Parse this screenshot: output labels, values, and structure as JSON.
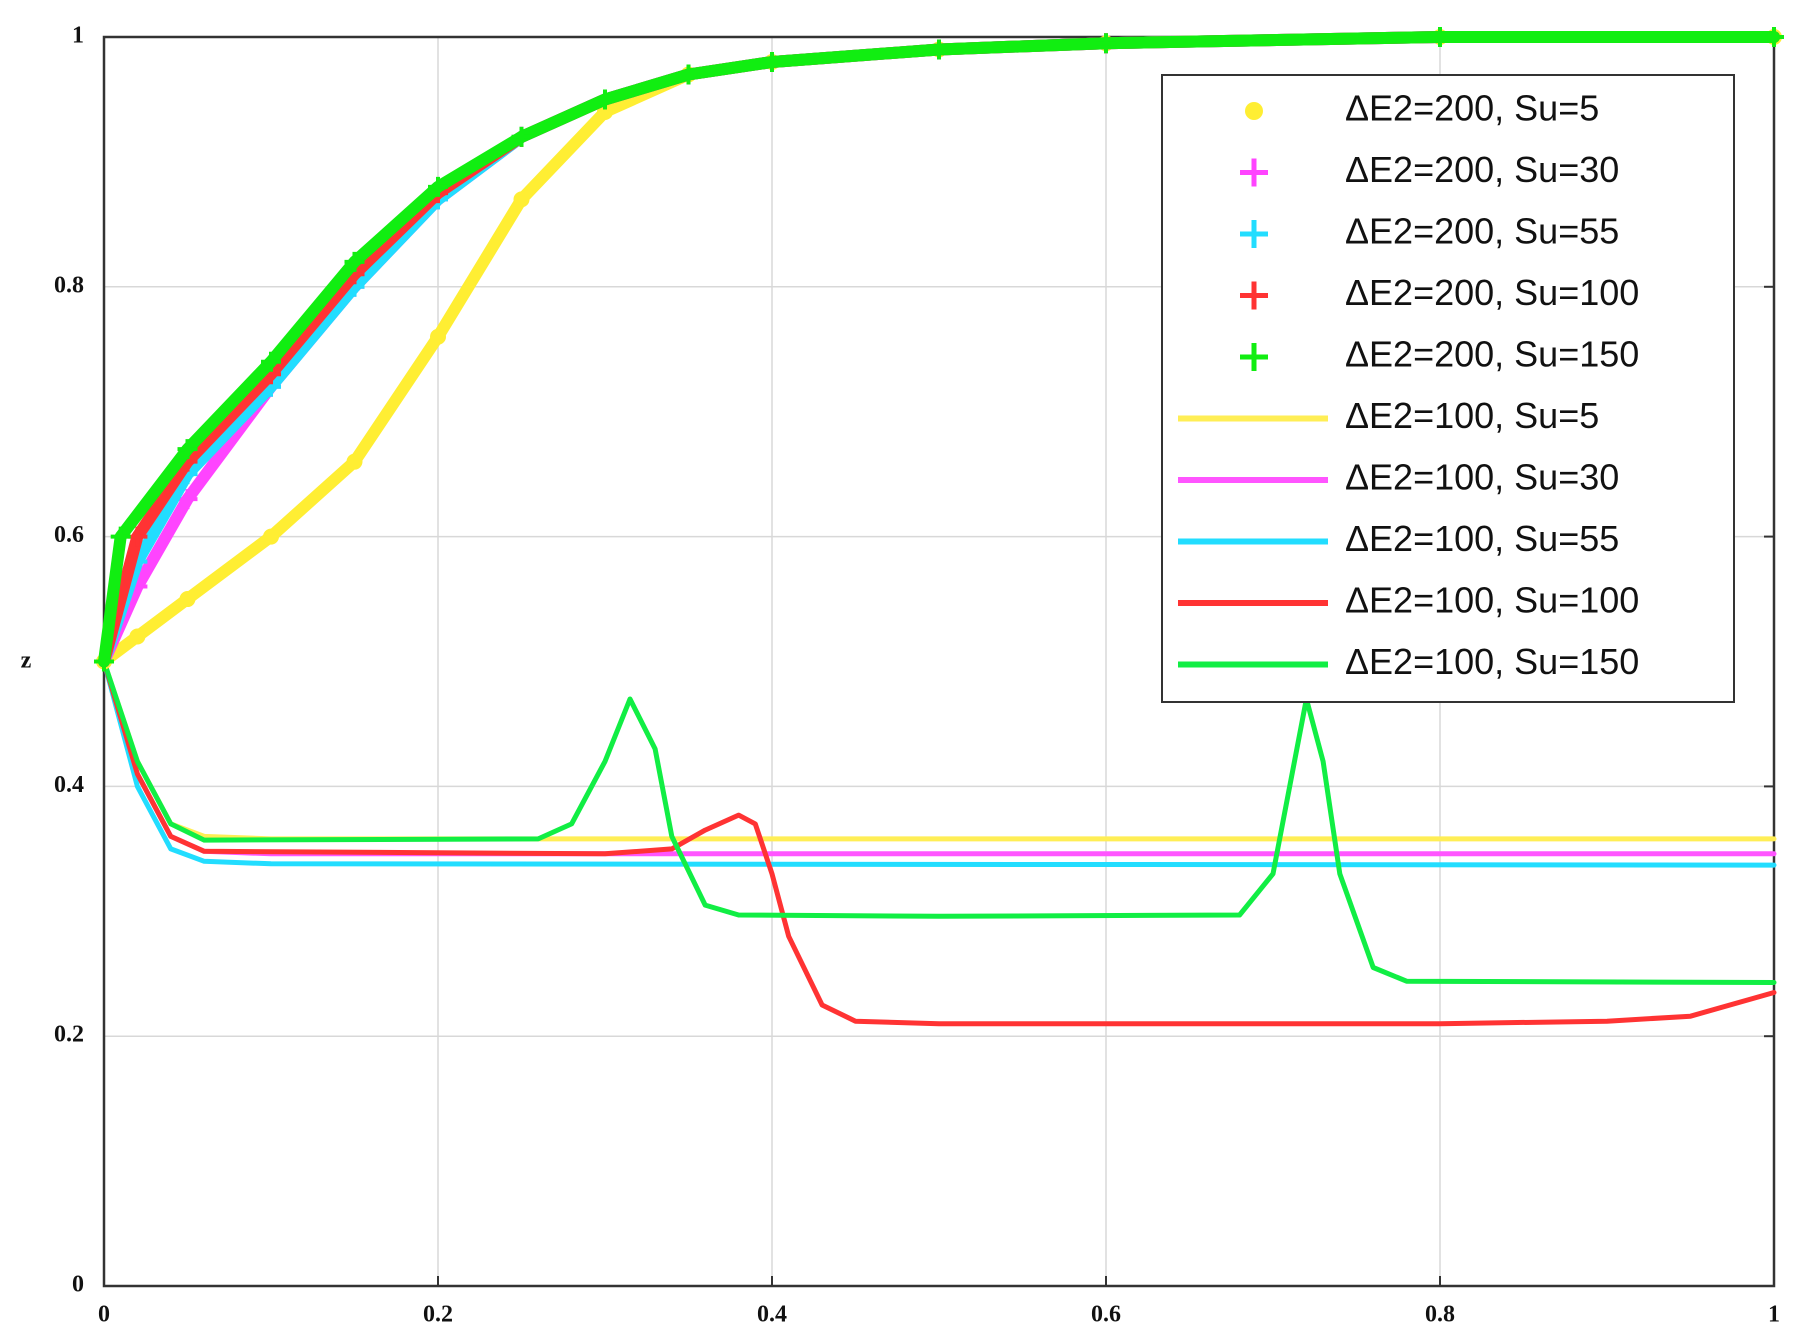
{
  "chart_data": {
    "type": "line",
    "ylabel": "z",
    "xlim": [
      0,
      1
    ],
    "ylim": [
      0,
      1
    ],
    "xticks": [
      0,
      0.2,
      0.4,
      0.6,
      0.8,
      1
    ],
    "yticks": [
      0,
      0.2,
      0.4,
      0.6,
      0.8,
      1
    ],
    "grid": true,
    "legend": "upper right",
    "series": [
      {
        "name": "ΔE2=200, Su=5",
        "color": "#ffee33",
        "marker": "o",
        "x": [
          0,
          0.02,
          0.05,
          0.1,
          0.15,
          0.2,
          0.25,
          0.3,
          0.35,
          0.4,
          0.5,
          0.6,
          0.8,
          1
        ],
        "values": [
          0.5,
          0.52,
          0.55,
          0.6,
          0.66,
          0.76,
          0.87,
          0.94,
          0.97,
          0.98,
          0.99,
          0.995,
          1,
          1
        ]
      },
      {
        "name": "ΔE2=200, Su=30",
        "color": "#ff44ff",
        "marker": "+",
        "x": [
          0,
          0.02,
          0.05,
          0.1,
          0.15,
          0.2,
          0.25,
          0.3,
          0.35,
          0.4,
          0.5,
          0.6,
          0.8,
          1
        ],
        "values": [
          0.5,
          0.56,
          0.63,
          0.72,
          0.8,
          0.87,
          0.92,
          0.95,
          0.97,
          0.98,
          0.99,
          0.995,
          1,
          1
        ]
      },
      {
        "name": "ΔE2=200, Su=55",
        "color": "#22ddff",
        "marker": "+",
        "x": [
          0,
          0.02,
          0.05,
          0.1,
          0.15,
          0.2,
          0.25,
          0.3,
          0.35,
          0.4,
          0.5,
          0.6,
          0.8,
          1
        ],
        "values": [
          0.5,
          0.58,
          0.65,
          0.72,
          0.8,
          0.87,
          0.92,
          0.95,
          0.97,
          0.98,
          0.99,
          0.995,
          1,
          1
        ]
      },
      {
        "name": "ΔE2=200, Su=100",
        "color": "#ff3333",
        "marker": "+",
        "x": [
          0,
          0.02,
          0.05,
          0.1,
          0.15,
          0.2,
          0.25,
          0.3,
          0.35,
          0.4,
          0.5,
          0.6,
          0.8,
          1
        ],
        "values": [
          0.5,
          0.6,
          0.66,
          0.73,
          0.81,
          0.875,
          0.92,
          0.95,
          0.97,
          0.98,
          0.99,
          0.995,
          1,
          1
        ]
      },
      {
        "name": "ΔE2=200, Su=150",
        "color": "#11ee11",
        "marker": "+",
        "x": [
          0,
          0.01,
          0.05,
          0.1,
          0.15,
          0.2,
          0.25,
          0.3,
          0.35,
          0.4,
          0.5,
          0.6,
          0.8,
          1
        ],
        "values": [
          0.5,
          0.6,
          0.67,
          0.74,
          0.82,
          0.88,
          0.92,
          0.95,
          0.97,
          0.98,
          0.99,
          0.995,
          1,
          1
        ]
      },
      {
        "name": "ΔE2=100, Su=5",
        "color": "#ffee55",
        "x": [
          0,
          0.02,
          0.04,
          0.06,
          0.1,
          1
        ],
        "values": [
          0.5,
          0.42,
          0.37,
          0.36,
          0.358,
          0.358
        ]
      },
      {
        "name": "ΔE2=100, Su=30",
        "color": "#ff55ff",
        "x": [
          0,
          0.02,
          0.04,
          0.06,
          0.1,
          1
        ],
        "values": [
          0.5,
          0.41,
          0.36,
          0.348,
          0.346,
          0.346
        ]
      },
      {
        "name": "ΔE2=100, Su=55",
        "color": "#22ddff",
        "x": [
          0,
          0.02,
          0.04,
          0.06,
          0.1,
          1
        ],
        "values": [
          0.5,
          0.4,
          0.35,
          0.34,
          0.338,
          0.337
        ]
      },
      {
        "name": "ΔE2=100, Su=100",
        "color": "#ff3333",
        "x": [
          0,
          0.02,
          0.04,
          0.06,
          0.3,
          0.34,
          0.36,
          0.38,
          0.39,
          0.4,
          0.41,
          0.43,
          0.45,
          0.5,
          0.8,
          0.9,
          0.95,
          1
        ],
        "values": [
          0.5,
          0.41,
          0.36,
          0.348,
          0.346,
          0.35,
          0.365,
          0.377,
          0.37,
          0.33,
          0.28,
          0.225,
          0.212,
          0.21,
          0.21,
          0.212,
          0.216,
          0.235
        ]
      },
      {
        "name": "ΔE2=100, Su=150",
        "color": "#11ee44",
        "x": [
          0,
          0.02,
          0.04,
          0.06,
          0.26,
          0.28,
          0.3,
          0.315,
          0.33,
          0.34,
          0.36,
          0.38,
          0.5,
          0.68,
          0.7,
          0.71,
          0.72,
          0.73,
          0.74,
          0.76,
          0.78,
          1
        ],
        "values": [
          0.5,
          0.42,
          0.37,
          0.357,
          0.358,
          0.37,
          0.42,
          0.47,
          0.43,
          0.36,
          0.305,
          0.297,
          0.296,
          0.297,
          0.33,
          0.4,
          0.47,
          0.42,
          0.33,
          0.255,
          0.244,
          0.243
        ]
      }
    ]
  }
}
